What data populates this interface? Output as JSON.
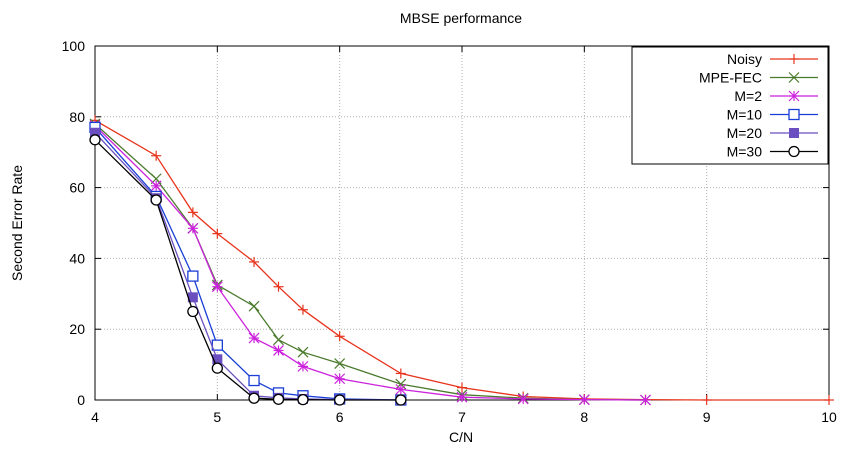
{
  "chart_data": {
    "type": "line",
    "title": "MBSE performance",
    "xlabel": "C/N",
    "ylabel": "Second Error Rate",
    "xlim": [
      4,
      10
    ],
    "ylim": [
      0,
      100
    ],
    "xticks": [
      4,
      5,
      6,
      7,
      8,
      9,
      10
    ],
    "yticks": [
      0,
      20,
      40,
      60,
      80,
      100
    ],
    "grid": true,
    "legend_position": "top-right",
    "series": [
      {
        "name": "Noisy",
        "color": "#e8341c",
        "marker": "plus",
        "x": [
          4,
          4.5,
          4.8,
          5,
          5.3,
          5.5,
          5.7,
          6,
          6.5,
          7,
          7.5,
          8,
          8.5,
          9,
          10
        ],
        "y": [
          79,
          69,
          53,
          47,
          39,
          32,
          25.5,
          18,
          7.5,
          3.5,
          1,
          0.3,
          0.1,
          0,
          0
        ]
      },
      {
        "name": "MPE-FEC",
        "color": "#4a7a2c",
        "marker": "cross",
        "x": [
          4,
          4.5,
          4.8,
          5,
          5.3,
          5.5,
          5.7,
          6,
          6.5,
          7,
          7.5,
          8,
          8.5
        ],
        "y": [
          78,
          62.5,
          48.5,
          32.5,
          26.5,
          17,
          13.5,
          10.3,
          4.5,
          1.5,
          0.5,
          0.1,
          0
        ]
      },
      {
        "name": "M=2",
        "color": "#cc22dd",
        "marker": "star",
        "x": [
          4,
          4.5,
          4.8,
          5,
          5.3,
          5.5,
          5.7,
          6,
          6.5,
          7,
          7.5,
          8,
          8.5
        ],
        "y": [
          77.5,
          60.5,
          48.5,
          32,
          17.5,
          14,
          9.5,
          6,
          3,
          0.8,
          0.3,
          0.1,
          0
        ]
      },
      {
        "name": "M=10",
        "color": "#1a3fd6",
        "marker": "square-open",
        "x": [
          4,
          4.5,
          4.8,
          5,
          5.3,
          5.5,
          5.7,
          6,
          6.5
        ],
        "y": [
          77,
          57.5,
          35,
          15.5,
          5.5,
          2,
          1.2,
          0.3,
          0
        ]
      },
      {
        "name": "M=20",
        "color": "#6b4fc0",
        "marker": "square-filled",
        "x": [
          4,
          4.5,
          4.8,
          5,
          5.3,
          5.5,
          5.7,
          6,
          6.5
        ],
        "y": [
          75.5,
          57,
          29,
          11.5,
          1.2,
          0.6,
          0.3,
          0.1,
          0
        ]
      },
      {
        "name": "M=30",
        "color": "#000000",
        "marker": "circle-open",
        "x": [
          4,
          4.5,
          4.8,
          5,
          5.3,
          5.5,
          5.7,
          6,
          6.5
        ],
        "y": [
          73.5,
          56.5,
          25,
          9,
          0.5,
          0.2,
          0.1,
          0,
          0
        ]
      }
    ]
  }
}
